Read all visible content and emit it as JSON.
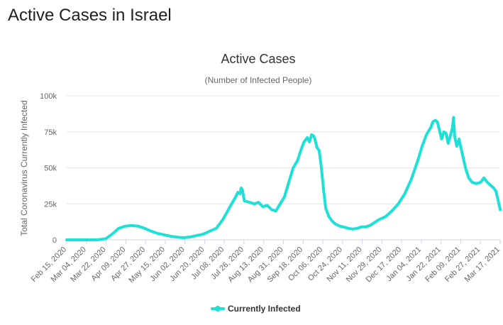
{
  "page": {
    "heading": "Active Cases in Israel"
  },
  "chart_data": {
    "type": "line",
    "title": "Active Cases",
    "subtitle": "(Number of Infected People)",
    "xlabel": "",
    "ylabel": "Total Coronavirus Currently Infected",
    "ylim": [
      0,
      100000
    ],
    "yticks": [
      0,
      25000,
      50000,
      75000,
      100000
    ],
    "ytick_labels": [
      "0",
      "25k",
      "50k",
      "75k",
      "100k"
    ],
    "grid": true,
    "legend_position": "bottom-center",
    "categories": [
      "Feb 15, 2020",
      "Mar 04, 2020",
      "Mar 22, 2020",
      "Apr 09, 2020",
      "Apr 27, 2020",
      "May 15, 2020",
      "Jun 02, 2020",
      "Jun 20, 2020",
      "Jul 08, 2020",
      "Jul 26, 2020",
      "Aug 13, 2020",
      "Aug 31, 2020",
      "Sep 18, 2020",
      "Oct 06, 2020",
      "Oct 24, 2020",
      "Nov 11, 2020",
      "Nov 29, 2020",
      "Dec 17, 2020",
      "Jan 04, 2021",
      "Jan 22, 2021",
      "Feb 09, 2021",
      "Feb 27, 2021",
      "Mar 17, 2021"
    ],
    "series": [
      {
        "name": "Currently Infected",
        "color": "#1fe0d6",
        "x": [
          "2020-02-15",
          "2020-03-04",
          "2020-03-15",
          "2020-03-22",
          "2020-03-28",
          "2020-04-03",
          "2020-04-09",
          "2020-04-15",
          "2020-04-21",
          "2020-04-27",
          "2020-05-03",
          "2020-05-09",
          "2020-05-15",
          "2020-05-21",
          "2020-05-27",
          "2020-06-02",
          "2020-06-08",
          "2020-06-14",
          "2020-06-20",
          "2020-06-26",
          "2020-07-02",
          "2020-07-08",
          "2020-07-14",
          "2020-07-20",
          "2020-07-22",
          "2020-07-24",
          "2020-07-25",
          "2020-07-26",
          "2020-07-28",
          "2020-08-02",
          "2020-08-06",
          "2020-08-10",
          "2020-08-14",
          "2020-08-18",
          "2020-08-22",
          "2020-08-26",
          "2020-08-30",
          "2020-09-03",
          "2020-09-07",
          "2020-09-11",
          "2020-09-15",
          "2020-09-18",
          "2020-09-21",
          "2020-09-24",
          "2020-09-26",
          "2020-09-28",
          "2020-09-30",
          "2020-10-01",
          "2020-10-03",
          "2020-10-05",
          "2020-10-07",
          "2020-10-09",
          "2020-10-11",
          "2020-10-14",
          "2020-10-17",
          "2020-10-20",
          "2020-10-24",
          "2020-10-28",
          "2020-11-01",
          "2020-11-05",
          "2020-11-09",
          "2020-11-13",
          "2020-11-17",
          "2020-11-21",
          "2020-11-25",
          "2020-11-29",
          "2020-12-05",
          "2020-12-11",
          "2020-12-17",
          "2020-12-23",
          "2020-12-29",
          "2021-01-04",
          "2021-01-08",
          "2021-01-12",
          "2021-01-16",
          "2021-01-18",
          "2021-01-20",
          "2021-01-22",
          "2021-01-24",
          "2021-01-26",
          "2021-01-28",
          "2021-01-30",
          "2021-02-01",
          "2021-02-03",
          "2021-02-05",
          "2021-02-06",
          "2021-02-07",
          "2021-02-09",
          "2021-02-11",
          "2021-02-14",
          "2021-02-17",
          "2021-02-20",
          "2021-02-23",
          "2021-02-27",
          "2021-03-03",
          "2021-03-06",
          "2021-03-09",
          "2021-03-12",
          "2021-03-15",
          "2021-03-17",
          "2021-03-19",
          "2021-03-21"
        ],
        "y": [
          0,
          0,
          50,
          800,
          4000,
          8000,
          9500,
          10000,
          9500,
          8000,
          6000,
          4500,
          3500,
          2500,
          1800,
          1500,
          2000,
          3000,
          4000,
          6000,
          8000,
          14000,
          22000,
          30000,
          33000,
          32000,
          36000,
          35000,
          27000,
          26000,
          25000,
          26000,
          23000,
          24000,
          21000,
          20000,
          25000,
          30000,
          40000,
          50000,
          55000,
          62000,
          68000,
          71000,
          68000,
          73000,
          72000,
          70000,
          64000,
          62000,
          50000,
          35000,
          22000,
          16000,
          13000,
          11000,
          9500,
          8800,
          8000,
          7500,
          8000,
          9000,
          9000,
          10000,
          12000,
          14000,
          16000,
          20000,
          25000,
          32000,
          42000,
          55000,
          65000,
          73000,
          78000,
          82000,
          83000,
          82000,
          76000,
          70000,
          75000,
          74000,
          67000,
          72000,
          78000,
          85000,
          72000,
          65000,
          70000,
          60000,
          50000,
          43000,
          40000,
          39000,
          40000,
          43000,
          40000,
          38000,
          36000,
          34000,
          28000,
          21000
        ]
      }
    ]
  }
}
